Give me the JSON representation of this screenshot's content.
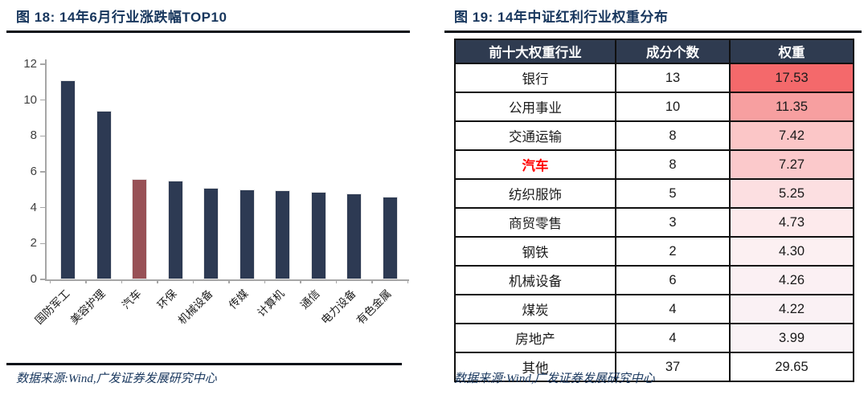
{
  "figures": [
    {
      "title": "图 18:  14年6月行业涨跌幅TOP10",
      "source": "数据来源:Wind,广发证券发展研究中心"
    },
    {
      "title": "图 19:  14年中证红利行业权重分布",
      "source": "数据来源:Wind,广发证券发展研究中心"
    }
  ],
  "chart_data": {
    "type": "bar",
    "title": "14年6月行业涨跌幅TOP10",
    "categories": [
      "国防军工",
      "美容护理",
      "汽车",
      "环保",
      "机械设备",
      "传媒",
      "计算机",
      "通信",
      "电力设备",
      "有色金属"
    ],
    "values": [
      11.1,
      9.4,
      5.6,
      5.5,
      5.1,
      5.0,
      4.95,
      4.9,
      4.8,
      4.6
    ],
    "xlabel": "",
    "ylabel": "",
    "ylim": [
      0,
      12
    ],
    "yticks": [
      0,
      2,
      4,
      6,
      8,
      10,
      12
    ],
    "grid": false,
    "legend": false,
    "bar_color": "#2d3a53",
    "highlight_category": "汽车",
    "highlight_index": 2,
    "highlight_color": "#985156",
    "axis_color": "#a6a6a6"
  },
  "table": {
    "header_bg": "#2f3b50",
    "header_color": "#ffffff",
    "highlight_text_color": "#ff0000",
    "headers": [
      "前十大权重行业",
      "成分个数",
      "权重"
    ],
    "rows": [
      {
        "industry": "银行",
        "count": "13",
        "weight": "17.53",
        "weight_bg": "#f4696b",
        "highlight": false
      },
      {
        "industry": "公用事业",
        "count": "10",
        "weight": "11.35",
        "weight_bg": "#f79fa0",
        "highlight": false
      },
      {
        "industry": "交通运输",
        "count": "8",
        "weight": "7.42",
        "weight_bg": "#fbc6c7",
        "highlight": false
      },
      {
        "industry": "汽车",
        "count": "8",
        "weight": "7.27",
        "weight_bg": "#fbc9cb",
        "highlight": true
      },
      {
        "industry": "纺织服饰",
        "count": "5",
        "weight": "5.25",
        "weight_bg": "#fcdfe1",
        "highlight": false
      },
      {
        "industry": "商贸零售",
        "count": "3",
        "weight": "4.73",
        "weight_bg": "#fdeaec",
        "highlight": false
      },
      {
        "industry": "钢铁",
        "count": "2",
        "weight": "4.30",
        "weight_bg": "#fcf0f2",
        "highlight": false
      },
      {
        "industry": "机械设备",
        "count": "6",
        "weight": "4.26",
        "weight_bg": "#fbf0f3",
        "highlight": false
      },
      {
        "industry": "煤炭",
        "count": "4",
        "weight": "4.22",
        "weight_bg": "#faf1f4",
        "highlight": false
      },
      {
        "industry": "房地产",
        "count": "4",
        "weight": "3.99",
        "weight_bg": "#faf3f6",
        "highlight": false
      },
      {
        "industry": "其他",
        "count": "37",
        "weight": "29.65",
        "weight_bg": "#ffffff",
        "highlight": false
      }
    ]
  },
  "colors": {
    "title_navy": "#17365d",
    "rule_black": "#0a0f18",
    "ytick_gray": "#404040"
  }
}
